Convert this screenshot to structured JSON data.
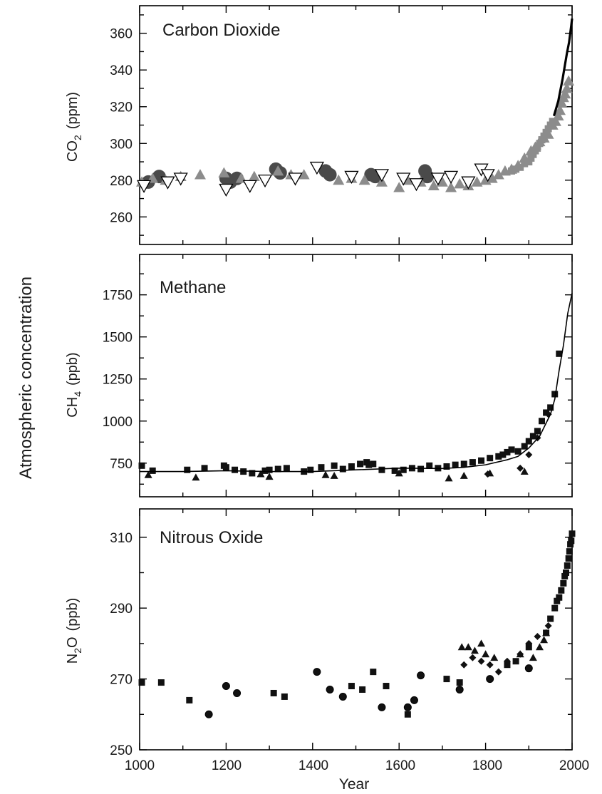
{
  "figure": {
    "overall_ylabel": "Atmospheric concentration",
    "xlabel": "Year",
    "xticks": [
      "1000",
      "1200",
      "1400",
      "1600",
      "1800",
      "2000"
    ]
  },
  "chart_data": [
    {
      "type": "scatter",
      "title": "Carbon Dioxide",
      "ylabel": "CO",
      "ylabel_sub": "2",
      "ylabel_unit": "(ppm)",
      "xlim": [
        1000,
        2000
      ],
      "ylim": [
        245,
        375
      ],
      "yticks": [
        260,
        280,
        300,
        320,
        340,
        360
      ],
      "colors": {
        "dark": "#4a4a4a",
        "gray": "#8c8c8c",
        "open": "#ffffff",
        "line": "#000000"
      },
      "series": [
        {
          "marker": "circle",
          "color": "#4a4a4a",
          "x": [
            1020,
            1045,
            1200,
            1210,
            1225,
            1315,
            1325,
            1430,
            1440,
            1535,
            1545,
            1660,
            1665
          ],
          "y": [
            279,
            282,
            281,
            279,
            281,
            286,
            284,
            285,
            283,
            283,
            282,
            285,
            282
          ]
        },
        {
          "marker": "triangle-up",
          "color": "#8c8c8c",
          "x": [
            1005,
            1030,
            1060,
            1095,
            1140,
            1195,
            1235,
            1265,
            1320,
            1350,
            1380,
            1460,
            1490,
            1520,
            1560,
            1600,
            1620,
            1650,
            1680,
            1700,
            1720,
            1740,
            1760,
            1780,
            1800,
            1815,
            1830,
            1845,
            1860,
            1875,
            1890,
            1905,
            1915,
            1925,
            1935,
            1945,
            1955,
            1962,
            1968,
            1972,
            1976,
            1980,
            1984,
            1988,
            1992
          ],
          "y": [
            279,
            281,
            280,
            282,
            283,
            284,
            281,
            282,
            285,
            283,
            283,
            280,
            281,
            280,
            279,
            276,
            280,
            279,
            277,
            279,
            276,
            278,
            277,
            279,
            280,
            281,
            283,
            285,
            286,
            288,
            292,
            296,
            298,
            301,
            303,
            305,
            310,
            312,
            315,
            318,
            322,
            325,
            327,
            330,
            334
          ]
        },
        {
          "marker": "triangle-down",
          "color": "#ffffff",
          "x": [
            1010,
            1065,
            1095,
            1200,
            1255,
            1290,
            1360,
            1410,
            1490,
            1560,
            1610,
            1640,
            1690,
            1720,
            1760,
            1790,
            1805
          ],
          "y": [
            277,
            279,
            281,
            275,
            277,
            280,
            281,
            287,
            282,
            283,
            281,
            278,
            281,
            282,
            279,
            286,
            283
          ]
        },
        {
          "marker": "square",
          "color": "#8c8c8c",
          "x": [
            1860,
            1870,
            1880,
            1890,
            1900,
            1905,
            1910,
            1915,
            1920,
            1925,
            1930,
            1935,
            1940,
            1945,
            1950,
            1955
          ],
          "y": [
            285,
            286,
            287,
            289,
            290,
            292,
            294,
            296,
            298,
            300,
            302,
            304,
            306,
            308,
            310,
            312
          ]
        },
        {
          "marker": "line",
          "color": "#000000",
          "x": [
            1958,
            1963,
            1968,
            1973,
            1978,
            1983,
            1988,
            1993,
            1998,
            2000
          ],
          "y": [
            315,
            319,
            323,
            329,
            335,
            342,
            349,
            355,
            364,
            368
          ]
        }
      ]
    },
    {
      "type": "scatter",
      "title": "Methane",
      "ylabel": "CH",
      "ylabel_sub": "4",
      "ylabel_unit": "(ppb)",
      "xlim": [
        1000,
        2000
      ],
      "ylim": [
        550,
        1990
      ],
      "yticks": [
        750,
        1000,
        1250,
        1500,
        1750
      ],
      "colors": {
        "marker": "#111111",
        "line": "#000000"
      },
      "series": [
        {
          "marker": "square",
          "color": "#111111",
          "x": [
            1005,
            1030,
            1110,
            1150,
            1195,
            1200,
            1220,
            1240,
            1260,
            1290,
            1300,
            1320,
            1340,
            1380,
            1395,
            1420,
            1450,
            1470,
            1490,
            1510,
            1525,
            1530,
            1540,
            1560,
            1590,
            1610,
            1630,
            1650,
            1670,
            1690,
            1710,
            1730,
            1750,
            1770,
            1790,
            1810,
            1830,
            1840,
            1850,
            1860,
            1875,
            1890,
            1900,
            1910,
            1920,
            1930,
            1940,
            1950,
            1960,
            1970
          ],
          "y": [
            735,
            705,
            710,
            720,
            735,
            725,
            710,
            700,
            690,
            705,
            710,
            715,
            720,
            700,
            710,
            725,
            735,
            715,
            730,
            745,
            755,
            740,
            745,
            710,
            705,
            710,
            720,
            715,
            735,
            720,
            730,
            740,
            745,
            755,
            765,
            780,
            790,
            800,
            815,
            830,
            820,
            850,
            880,
            910,
            940,
            1000,
            1050,
            1080,
            1160,
            1400
          ]
        },
        {
          "marker": "triangle-up",
          "color": "#111111",
          "x": [
            1020,
            1130,
            1280,
            1300,
            1430,
            1450,
            1600,
            1715,
            1750,
            1810,
            1890
          ],
          "y": [
            680,
            665,
            685,
            670,
            680,
            675,
            690,
            660,
            675,
            690,
            700
          ]
        },
        {
          "marker": "diamond",
          "color": "#111111",
          "x": [
            1805,
            1880,
            1900,
            1920,
            1945
          ],
          "y": [
            685,
            720,
            800,
            900,
            1040
          ]
        },
        {
          "marker": "line",
          "color": "#000000",
          "x": [
            1000,
            1100,
            1200,
            1300,
            1400,
            1500,
            1600,
            1700,
            1750,
            1800,
            1850,
            1875,
            1900,
            1925,
            1950,
            1960,
            1970,
            1980,
            1990,
            2000
          ],
          "y": [
            700,
            700,
            705,
            700,
            700,
            710,
            720,
            718,
            725,
            740,
            770,
            790,
            840,
            910,
            1040,
            1130,
            1300,
            1450,
            1640,
            1760
          ]
        }
      ]
    },
    {
      "type": "scatter",
      "title": "Nitrous Oxide",
      "ylabel": "N",
      "ylabel_sub": "2",
      "ylabel_mid": "O",
      "ylabel_unit": "(ppb)",
      "xlim": [
        1000,
        2000
      ],
      "ylim": [
        250,
        318
      ],
      "yticks": [
        250,
        270,
        290,
        310
      ],
      "colors": {
        "marker": "#111111"
      },
      "series": [
        {
          "marker": "circle",
          "color": "#111111",
          "x": [
            1160,
            1200,
            1225,
            1410,
            1440,
            1470,
            1560,
            1620,
            1635,
            1650,
            1740,
            1810,
            1900
          ],
          "y": [
            260,
            268,
            266,
            272,
            267,
            265,
            262,
            262,
            264,
            271,
            267,
            270,
            273
          ]
        },
        {
          "marker": "square",
          "color": "#111111",
          "x": [
            1005,
            1050,
            1115,
            1310,
            1335,
            1490,
            1515,
            1540,
            1570,
            1620,
            1710,
            1740,
            1850,
            1870,
            1900,
            1940,
            1950,
            1960,
            1965,
            1970,
            1975,
            1980,
            1983,
            1986,
            1989,
            1992,
            1994,
            1996,
            1998,
            2000
          ],
          "y": [
            269,
            269,
            264,
            266,
            265,
            268,
            267,
            272,
            268,
            260,
            270,
            269,
            274,
            275,
            279,
            283,
            287,
            290,
            292,
            293,
            295,
            297,
            299,
            300,
            302,
            304,
            306,
            308,
            309,
            311
          ]
        },
        {
          "marker": "triangle-up",
          "color": "#111111",
          "x": [
            1745,
            1760,
            1775,
            1790,
            1800,
            1820,
            1880,
            1910,
            1925,
            1935,
            1940
          ],
          "y": [
            279,
            279,
            278,
            280,
            277,
            276,
            277,
            276,
            279,
            281,
            283
          ]
        },
        {
          "marker": "diamond",
          "color": "#111111",
          "x": [
            1750,
            1770,
            1790,
            1810,
            1830,
            1850,
            1880,
            1900,
            1920,
            1945
          ],
          "y": [
            274,
            276,
            275,
            274,
            272,
            275,
            277,
            280,
            282,
            285
          ]
        }
      ]
    }
  ]
}
